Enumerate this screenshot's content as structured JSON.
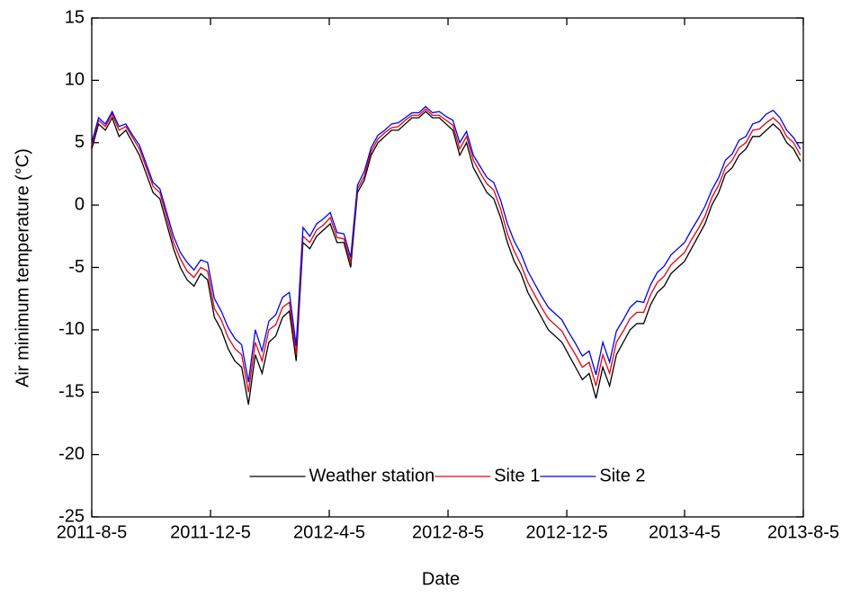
{
  "chart_data": {
    "type": "line",
    "x_label": "Date",
    "y_label": "Air minimum temperature (°C)",
    "x": [
      "2011-8-5",
      "2011-8-12",
      "2011-8-19",
      "2011-8-26",
      "2011-9-2",
      "2011-9-9",
      "2011-9-16",
      "2011-9-23",
      "2011-9-30",
      "2011-10-7",
      "2011-10-14",
      "2011-10-21",
      "2011-10-28",
      "2011-11-4",
      "2011-11-11",
      "2011-11-18",
      "2011-11-25",
      "2011-12-2",
      "2011-12-9",
      "2011-12-16",
      "2011-12-23",
      "2011-12-30",
      "2012-1-6",
      "2012-1-13",
      "2012-1-20",
      "2012-1-27",
      "2012-2-3",
      "2012-2-10",
      "2012-2-17",
      "2012-2-24",
      "2012-3-2",
      "2012-3-9",
      "2012-3-16",
      "2012-3-23",
      "2012-3-30",
      "2012-4-6",
      "2012-4-13",
      "2012-4-20",
      "2012-4-27",
      "2012-5-4",
      "2012-5-11",
      "2012-5-18",
      "2012-5-25",
      "2012-6-1",
      "2012-6-8",
      "2012-6-15",
      "2012-6-22",
      "2012-6-29",
      "2012-7-6",
      "2012-7-13",
      "2012-7-20",
      "2012-7-27",
      "2012-8-3",
      "2012-8-10",
      "2012-8-17",
      "2012-8-24",
      "2012-8-31",
      "2012-9-7",
      "2012-9-14",
      "2012-9-21",
      "2012-9-28",
      "2012-10-5",
      "2012-10-12",
      "2012-10-19",
      "2012-10-26",
      "2012-11-2",
      "2012-11-9",
      "2012-11-16",
      "2012-11-23",
      "2012-11-30",
      "2012-12-7",
      "2012-12-14",
      "2012-12-21",
      "2012-12-28",
      "2013-1-4",
      "2013-1-11",
      "2013-1-18",
      "2013-1-25",
      "2013-2-1",
      "2013-2-8",
      "2013-2-15",
      "2013-2-22",
      "2013-3-1",
      "2013-3-8",
      "2013-3-15",
      "2013-3-22",
      "2013-3-29",
      "2013-4-5",
      "2013-4-12",
      "2013-4-19",
      "2013-4-26",
      "2013-5-3",
      "2013-5-10",
      "2013-5-17",
      "2013-5-24",
      "2013-5-31",
      "2013-6-7",
      "2013-6-14",
      "2013-6-21",
      "2013-6-28",
      "2013-7-5",
      "2013-7-12",
      "2013-7-19",
      "2013-7-26",
      "2013-8-2"
    ],
    "series": [
      {
        "name": "Weather station",
        "color": "#000000",
        "values": [
          4.5,
          6.5,
          6,
          7,
          5.5,
          6,
          5,
          4,
          2.5,
          1,
          0.5,
          -1.5,
          -3.5,
          -5,
          -6,
          -6.5,
          -5.5,
          -6,
          -9,
          -10,
          -11.5,
          -12.5,
          -13,
          -16,
          -12,
          -13.5,
          -11,
          -10.5,
          -9,
          -8.5,
          -12.5,
          -3,
          -3.5,
          -2.5,
          -2,
          -1.5,
          -3,
          -3,
          -5,
          1,
          2,
          4,
          5,
          5.5,
          6,
          6,
          6.5,
          7,
          7,
          7.5,
          7,
          7,
          6.5,
          6,
          4,
          5,
          3,
          2,
          1,
          0.5,
          -1,
          -3,
          -4.5,
          -5.5,
          -7,
          -8,
          -9,
          -10,
          -10.5,
          -11,
          -12,
          -13,
          -14,
          -13.5,
          -15.5,
          -13,
          -14.5,
          -12,
          -11,
          -10,
          -9.5,
          -9.5,
          -8,
          -7,
          -6.5,
          -5.5,
          -5,
          -4.5,
          -3.5,
          -2.5,
          -1.5,
          0,
          1,
          2.5,
          3,
          4,
          4.5,
          5.5,
          5.5,
          6,
          6.5,
          6,
          5,
          4.5,
          3.5
        ]
      },
      {
        "name": "Site 1",
        "color": "#e8000b",
        "values": [
          4.8,
          6.8,
          6.3,
          7.3,
          6,
          6.3,
          5.4,
          4.5,
          3,
          1.5,
          1,
          -1,
          -3,
          -4.3,
          -5.3,
          -5.8,
          -5,
          -5.3,
          -8.3,
          -9.2,
          -10.6,
          -11.5,
          -12,
          -15,
          -11,
          -12.5,
          -10,
          -9.6,
          -8.2,
          -7.8,
          -12,
          -2.5,
          -3,
          -2,
          -1.6,
          -1,
          -2.6,
          -2.7,
          -4.6,
          1.3,
          2.3,
          4.3,
          5.3,
          5.8,
          6.2,
          6.3,
          6.8,
          7.2,
          7.2,
          7.7,
          7.2,
          7.2,
          6.8,
          6.4,
          4.5,
          5.5,
          3.6,
          2.6,
          1.7,
          1.2,
          -0.3,
          -2.3,
          -3.7,
          -4.8,
          -6.2,
          -7.2,
          -8.2,
          -9.1,
          -9.6,
          -10.1,
          -11.1,
          -12,
          -13,
          -12.6,
          -14.5,
          -12,
          -13.5,
          -11,
          -10.1,
          -9.1,
          -8.6,
          -8.6,
          -7.2,
          -6.2,
          -5.7,
          -4.8,
          -4.3,
          -3.8,
          -2.8,
          -1.9,
          -0.9,
          0.6,
          1.6,
          3,
          3.6,
          4.6,
          5,
          6,
          6.1,
          6.6,
          7,
          6.5,
          5.5,
          5,
          4
        ]
      },
      {
        "name": "Site 2",
        "color": "#0000ee",
        "values": [
          5,
          7,
          6.5,
          7.5,
          6.3,
          6.5,
          5.6,
          4.8,
          3.3,
          1.8,
          1.3,
          -0.6,
          -2.5,
          -3.8,
          -4.6,
          -5.2,
          -4.4,
          -4.6,
          -7.5,
          -8.5,
          -9.8,
          -10.7,
          -11.2,
          -14.2,
          -10,
          -11.7,
          -9.3,
          -8.8,
          -7.4,
          -7,
          -11.3,
          -1.8,
          -2.5,
          -1.5,
          -1.1,
          -0.6,
          -2.2,
          -2.3,
          -4.2,
          1.6,
          2.7,
          4.6,
          5.6,
          6,
          6.5,
          6.6,
          7,
          7.4,
          7.4,
          7.9,
          7.4,
          7.5,
          7.1,
          6.8,
          5,
          5.9,
          4,
          3.1,
          2.2,
          1.8,
          0.4,
          -1.5,
          -2.9,
          -3.9,
          -5.3,
          -6.3,
          -7.3,
          -8.2,
          -8.7,
          -9.2,
          -10.2,
          -11.1,
          -12.1,
          -11.7,
          -13.6,
          -11,
          -12.6,
          -10.1,
          -9.2,
          -8.2,
          -7.7,
          -7.8,
          -6.4,
          -5.4,
          -4.9,
          -4,
          -3.5,
          -3,
          -2,
          -1.1,
          -0.1,
          1.2,
          2.2,
          3.6,
          4.1,
          5.2,
          5.5,
          6.5,
          6.7,
          7.3,
          7.6,
          7,
          6,
          5.4,
          4.5
        ]
      }
    ],
    "xlim": [
      "2011-8-5",
      "2013-8-5"
    ],
    "xticks": [
      "2011-8-5",
      "2011-12-5",
      "2012-4-5",
      "2012-8-5",
      "2012-12-5",
      "2013-4-5",
      "2013-8-5"
    ],
    "ylim": [
      -25,
      15
    ],
    "yticks": [
      -25,
      -20,
      -15,
      -10,
      -5,
      0,
      5,
      10,
      15
    ],
    "grid": false,
    "legend": "bottom-center"
  }
}
